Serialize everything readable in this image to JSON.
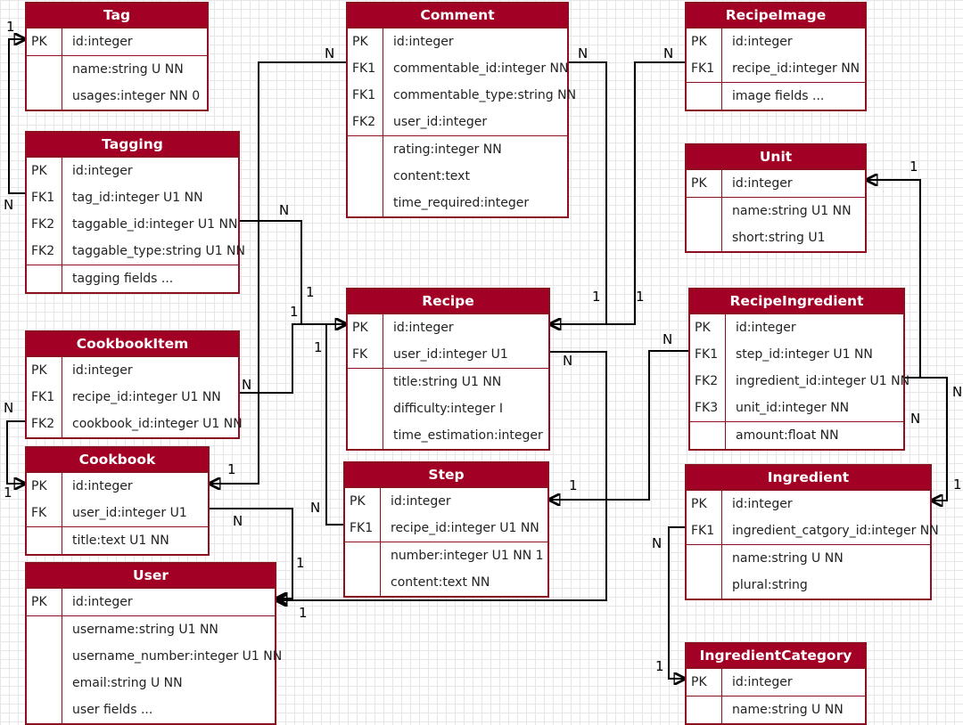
{
  "entities": {
    "tag": {
      "title": "Tag",
      "rows": [
        {
          "key": "PK",
          "field": "id:integer"
        },
        {
          "key": "",
          "field": "name:string U NN"
        },
        {
          "key": "",
          "field": "usages:integer NN 0"
        }
      ]
    },
    "tagging": {
      "title": "Tagging",
      "rows": [
        {
          "key": "PK",
          "field": "id:integer"
        },
        {
          "key": "FK1",
          "field": "tag_id:integer U1 NN"
        },
        {
          "key": "FK2",
          "field": "taggable_id:integer U1 NN"
        },
        {
          "key": "FK2",
          "field": "taggable_type:string U1 NN"
        },
        {
          "key": "",
          "field": "tagging fields ..."
        }
      ]
    },
    "cookbookitem": {
      "title": "CookbookItem",
      "rows": [
        {
          "key": "PK",
          "field": "id:integer"
        },
        {
          "key": "FK1",
          "field": "recipe_id:integer U1 NN"
        },
        {
          "key": "FK2",
          "field": "cookbook_id:integer U1 NN"
        }
      ]
    },
    "cookbook": {
      "title": "Cookbook",
      "rows": [
        {
          "key": "PK",
          "field": "id:integer"
        },
        {
          "key": "FK",
          "field": "user_id:integer U1"
        },
        {
          "key": "",
          "field": "title:text U1 NN"
        }
      ]
    },
    "user": {
      "title": "User",
      "rows": [
        {
          "key": "PK",
          "field": "id:integer"
        },
        {
          "key": "",
          "field": "username:string U1 NN"
        },
        {
          "key": "",
          "field": "username_number:integer U1 NN"
        },
        {
          "key": "",
          "field": "email:string U NN"
        },
        {
          "key": "",
          "field": "user fields ..."
        }
      ]
    },
    "comment": {
      "title": "Comment",
      "rows": [
        {
          "key": "PK",
          "field": "id:integer"
        },
        {
          "key": "FK1",
          "field": "commentable_id:integer NN"
        },
        {
          "key": "FK1",
          "field": "commentable_type:string NN"
        },
        {
          "key": "FK2",
          "field": "user_id:integer"
        },
        {
          "key": "",
          "field": "rating:integer NN"
        },
        {
          "key": "",
          "field": "content:text"
        },
        {
          "key": "",
          "field": "time_required:integer"
        }
      ]
    },
    "recipe": {
      "title": "Recipe",
      "rows": [
        {
          "key": "PK",
          "field": "id:integer"
        },
        {
          "key": "FK",
          "field": "user_id:integer U1"
        },
        {
          "key": "",
          "field": "title:string U1 NN"
        },
        {
          "key": "",
          "field": "difficulty:integer I"
        },
        {
          "key": "",
          "field": "time_estimation:integer"
        }
      ]
    },
    "step": {
      "title": "Step",
      "rows": [
        {
          "key": "PK",
          "field": "id:integer"
        },
        {
          "key": "FK1",
          "field": "recipe_id:integer U1 NN"
        },
        {
          "key": "",
          "field": "number:integer U1 NN 1"
        },
        {
          "key": "",
          "field": "content:text NN"
        }
      ]
    },
    "recipeimage": {
      "title": "RecipeImage",
      "rows": [
        {
          "key": "PK",
          "field": "id:integer"
        },
        {
          "key": "FK1",
          "field": "recipe_id:integer NN"
        },
        {
          "key": "",
          "field": "image fields ..."
        }
      ]
    },
    "unit": {
      "title": "Unit",
      "rows": [
        {
          "key": "PK",
          "field": "id:integer"
        },
        {
          "key": "",
          "field": "name:string U1 NN"
        },
        {
          "key": "",
          "field": "short:string U1"
        }
      ]
    },
    "recipeingredient": {
      "title": "RecipeIngredient",
      "rows": [
        {
          "key": "PK",
          "field": "id:integer"
        },
        {
          "key": "FK1",
          "field": "step_id:integer U1 NN"
        },
        {
          "key": "FK2",
          "field": "ingredient_id:integer U1 NN"
        },
        {
          "key": "FK3",
          "field": "unit_id:integer NN"
        },
        {
          "key": "",
          "field": "amount:float NN"
        }
      ]
    },
    "ingredient": {
      "title": "Ingredient",
      "rows": [
        {
          "key": "PK",
          "field": "id:integer"
        },
        {
          "key": "FK1",
          "field": "ingredient_catgory_id:integer NN"
        },
        {
          "key": "",
          "field": "name:string U NN"
        },
        {
          "key": "",
          "field": "plural:string"
        }
      ]
    },
    "ingredientcategory": {
      "title": "IngredientCategory",
      "rows": [
        {
          "key": "PK",
          "field": "id:integer"
        },
        {
          "key": "",
          "field": "name:string U NN"
        }
      ]
    }
  },
  "labels": [
    {
      "id": "tag-one",
      "text": "1"
    },
    {
      "id": "tagging-tag-n",
      "text": "N"
    },
    {
      "id": "comment-user-n",
      "text": "N"
    },
    {
      "id": "comment-recipe-n",
      "text": "N"
    },
    {
      "id": "recipeimage-n",
      "text": "N"
    },
    {
      "id": "unit-one",
      "text": "1"
    },
    {
      "id": "tagging-recipe-n",
      "text": "N"
    },
    {
      "id": "tagging-recipe-one",
      "text": "1"
    },
    {
      "id": "cookbookitem-recipe-one",
      "text": "1"
    },
    {
      "id": "step-recipe-one",
      "text": "1"
    },
    {
      "id": "comment-recipe-one",
      "text": "1"
    },
    {
      "id": "recipeimage-recipe-one",
      "text": "1"
    },
    {
      "id": "recipeingredient-step-n",
      "text": "N"
    },
    {
      "id": "recipe-user-n",
      "text": "N"
    },
    {
      "id": "cookbookitem-recipe-n",
      "text": "N"
    },
    {
      "id": "cookbookitem-cookbook-n",
      "text": "N"
    },
    {
      "id": "cookbook-user-one",
      "text": "1"
    },
    {
      "id": "cookbookitem-cookbook-one",
      "text": "1"
    },
    {
      "id": "cookbook-user-n",
      "text": "N"
    },
    {
      "id": "step-recipe-n",
      "text": "N"
    },
    {
      "id": "recipeingredient-step-one",
      "text": "1"
    },
    {
      "id": "recipeingredient-ingredient-n",
      "text": "N"
    },
    {
      "id": "recipeingredient-unit-n",
      "text": "N"
    },
    {
      "id": "ingredient-one",
      "text": "1"
    },
    {
      "id": "user-cookbook-one",
      "text": "1"
    },
    {
      "id": "user-recipe-one",
      "text": "1"
    },
    {
      "id": "ingredient-category-n",
      "text": "N"
    },
    {
      "id": "ingredientcategory-one",
      "text": "1"
    }
  ]
}
